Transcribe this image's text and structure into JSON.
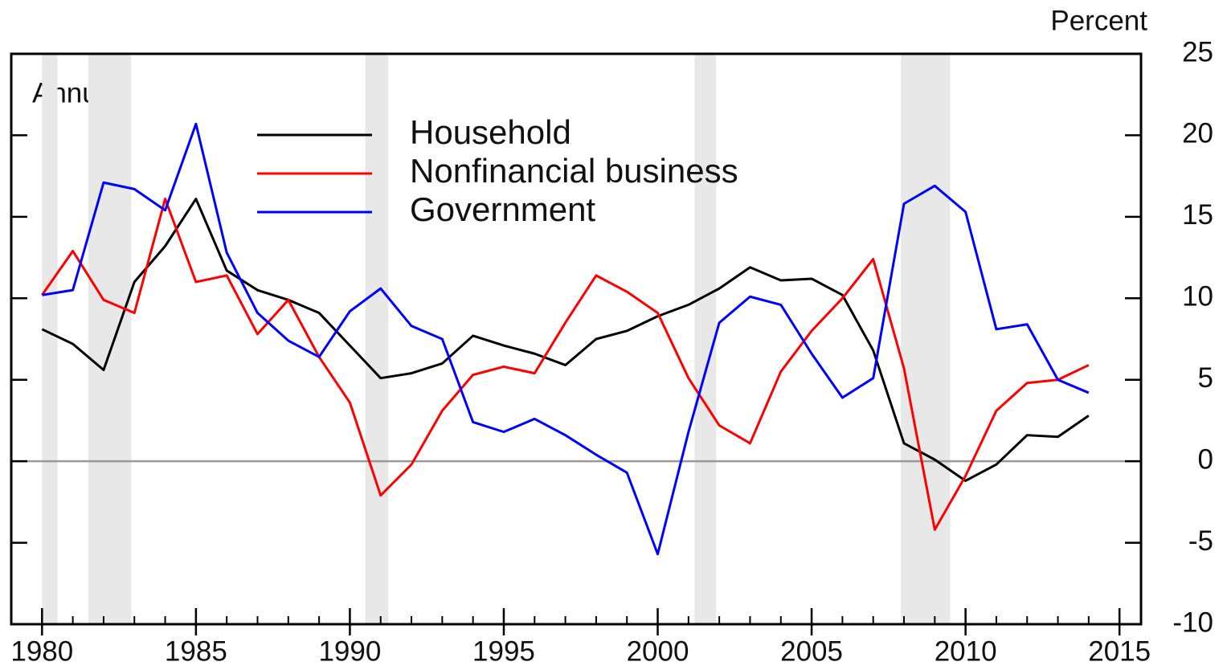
{
  "chart_data": {
    "type": "line",
    "y_label": "Percent",
    "annotation": "Annual",
    "x": [
      1980,
      1981,
      1982,
      1983,
      1984,
      1985,
      1986,
      1987,
      1988,
      1989,
      1990,
      1991,
      1992,
      1993,
      1994,
      1995,
      1996,
      1997,
      1998,
      1999,
      2000,
      2001,
      2002,
      2003,
      2004,
      2005,
      2006,
      2007,
      2008,
      2009,
      2010,
      2011,
      2012,
      2013,
      2014
    ],
    "series": [
      {
        "name": "Household",
        "color": "#000000",
        "values": [
          8.1,
          7.2,
          5.6,
          11.0,
          13.2,
          16.1,
          11.7,
          10.5,
          9.9,
          9.1,
          7.1,
          5.1,
          5.4,
          6.0,
          7.7,
          7.1,
          6.6,
          5.9,
          7.5,
          8.0,
          8.9,
          9.6,
          10.6,
          11.9,
          11.1,
          11.2,
          10.2,
          6.8,
          1.1,
          0.1,
          -1.2,
          -0.2,
          1.6,
          1.5,
          2.8
        ]
      },
      {
        "name": "Nonfinancial business",
        "color": "#ff0000",
        "values": [
          10.2,
          12.9,
          9.9,
          9.1,
          16.1,
          11.0,
          11.4,
          7.8,
          9.9,
          6.4,
          3.6,
          -2.1,
          -0.2,
          3.1,
          5.3,
          5.8,
          5.4,
          8.5,
          11.4,
          10.4,
          9.1,
          5.1,
          2.2,
          1.1,
          5.5,
          8.0,
          10.0,
          12.4,
          5.7,
          -4.2,
          -0.9,
          3.1,
          4.8,
          5.0,
          5.9
        ]
      },
      {
        "name": "Government",
        "color": "#0000ff",
        "values": [
          10.2,
          10.5,
          17.1,
          16.7,
          15.4,
          20.7,
          12.8,
          9.1,
          7.4,
          6.4,
          9.2,
          10.6,
          8.3,
          7.5,
          2.4,
          1.8,
          2.6,
          1.6,
          0.4,
          -0.7,
          -5.7,
          1.8,
          8.5,
          10.1,
          9.6,
          6.6,
          3.9,
          5.1,
          15.8,
          16.9,
          15.3,
          8.1,
          8.4,
          5.0,
          4.2
        ]
      }
    ],
    "recessions": [
      [
        1980.0,
        1980.5
      ],
      [
        1981.5,
        1982.9
      ],
      [
        1990.5,
        1991.25
      ],
      [
        2001.2,
        2001.9
      ],
      [
        2007.9,
        2009.5
      ]
    ],
    "recession_color": "#e8e8e8",
    "xlim": [
      1979.0,
      2015.7
    ],
    "xticks": [
      1980,
      1985,
      1990,
      1995,
      2000,
      2005,
      2010,
      2015
    ],
    "ylim": [
      -10,
      25
    ],
    "yticks": [
      -10,
      -5,
      0,
      5,
      10,
      15,
      20,
      25
    ],
    "y_axis_side": "right",
    "zero_line": true
  }
}
